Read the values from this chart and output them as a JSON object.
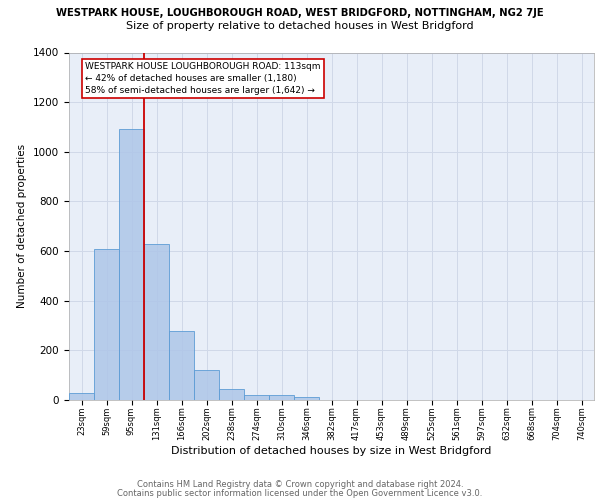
{
  "title_line1": "WESTPARK HOUSE, LOUGHBOROUGH ROAD, WEST BRIDGFORD, NOTTINGHAM, NG2 7JE",
  "title_line2": "Size of property relative to detached houses in West Bridgford",
  "xlabel": "Distribution of detached houses by size in West Bridgford",
  "ylabel": "Number of detached properties",
  "categories": [
    "23sqm",
    "59sqm",
    "95sqm",
    "131sqm",
    "166sqm",
    "202sqm",
    "238sqm",
    "274sqm",
    "310sqm",
    "346sqm",
    "382sqm",
    "417sqm",
    "453sqm",
    "489sqm",
    "525sqm",
    "561sqm",
    "597sqm",
    "632sqm",
    "668sqm",
    "704sqm",
    "740sqm"
  ],
  "values": [
    30,
    610,
    1090,
    630,
    280,
    120,
    45,
    22,
    22,
    13,
    0,
    0,
    0,
    0,
    0,
    0,
    0,
    0,
    0,
    0,
    0
  ],
  "bar_color": "#aec6e8",
  "bar_edge_color": "#5b9bd5",
  "vline_x_pos": 2.5,
  "vline_color": "#cc0000",
  "annotation_text": "WESTPARK HOUSE LOUGHBOROUGH ROAD: 113sqm\n← 42% of detached houses are smaller (1,180)\n58% of semi-detached houses are larger (1,642) →",
  "annotation_box_color": "#ffffff",
  "annotation_edge_color": "#cc0000",
  "ylim": [
    0,
    1400
  ],
  "yticks": [
    0,
    200,
    400,
    600,
    800,
    1000,
    1200,
    1400
  ],
  "grid_color": "#d0d8e8",
  "background_color": "#e8eef8",
  "footer_line1": "Contains HM Land Registry data © Crown copyright and database right 2024.",
  "footer_line2": "Contains public sector information licensed under the Open Government Licence v3.0."
}
